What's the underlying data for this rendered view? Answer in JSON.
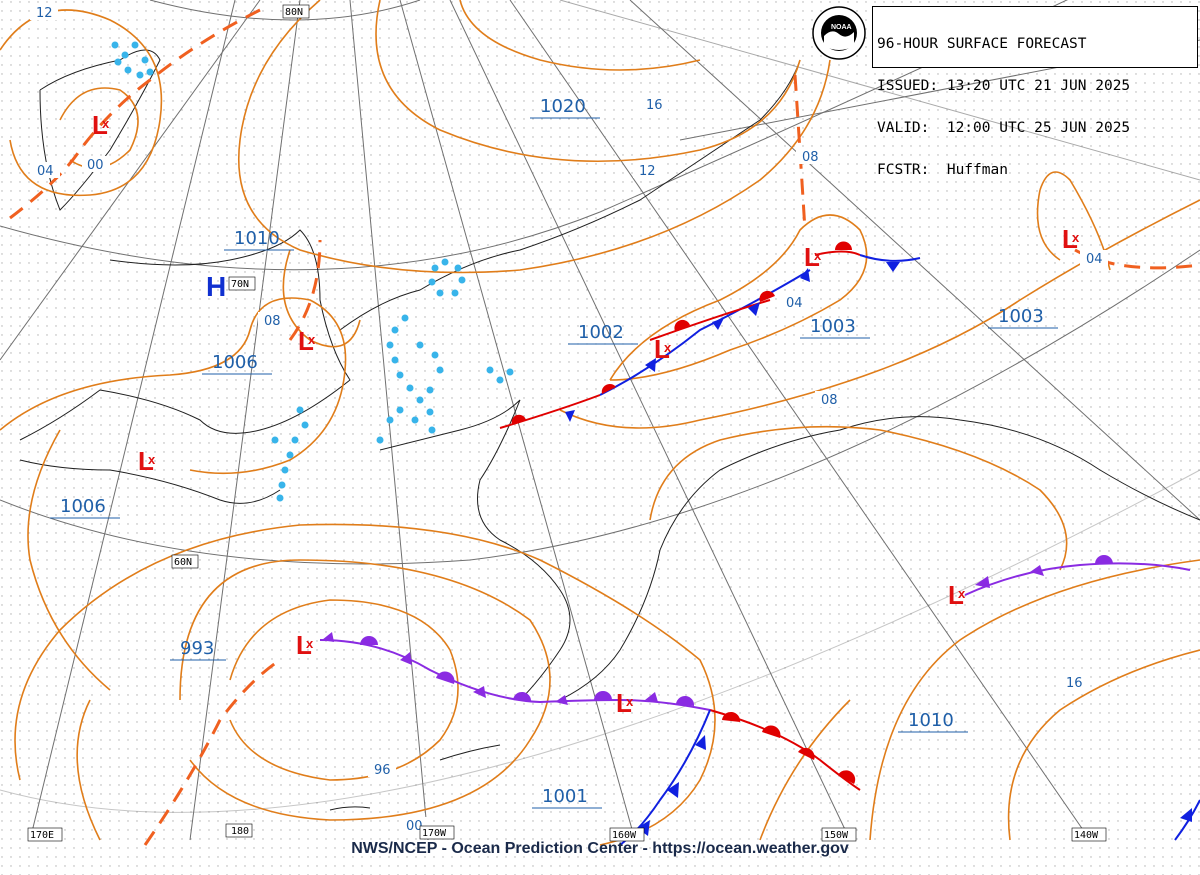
{
  "header": {
    "line1": "96-HOUR SURFACE FORECAST",
    "line2": "ISSUED: 13:20 UTC 21 JUN 2025",
    "line3": "VALID:  12:00 UTC 25 JUN 2025",
    "line4": "FCSTR:  Huffman"
  },
  "footer": "NWS/NCEP - Ocean Prediction Center - https://ocean.weather.gov",
  "grid_labels": {
    "lat80": "80N",
    "lat70": "70N",
    "lat60": "60N",
    "lon170e": "170E",
    "lon180": "180",
    "lon170w": "170W",
    "lon160w": "160W",
    "lon150w": "150W",
    "lon140w": "140W"
  },
  "pressure_labels": {
    "p1020": "1020",
    "p1010a": "1010",
    "p1006a": "1006",
    "p1006b": "1006",
    "p1002": "1002",
    "p1003a": "1003",
    "p1003b": "1003",
    "p993": "993",
    "p1001": "1001",
    "p1010b": "1010"
  },
  "isobar_labels": {
    "i12a": "12",
    "i04a": "04",
    "i00a": "00",
    "i16": "16",
    "i12b": "12",
    "i08a": "08",
    "i08b": "08",
    "i04b": "04",
    "i08c": "08",
    "i04c": "04",
    "i96": "96",
    "i00b": "00",
    "i16b": "16"
  },
  "symbols": {
    "low": "L",
    "high": "H"
  },
  "colors": {
    "isobar": "#e07d1a",
    "trough": "#f06020",
    "low": "#e01010",
    "high": "#1030d0",
    "warm_front": "#e00000",
    "cold_front": "#1020e0",
    "occluded_front": "#8a2be2",
    "ice": "#38b4ea",
    "grid": "#606060"
  }
}
